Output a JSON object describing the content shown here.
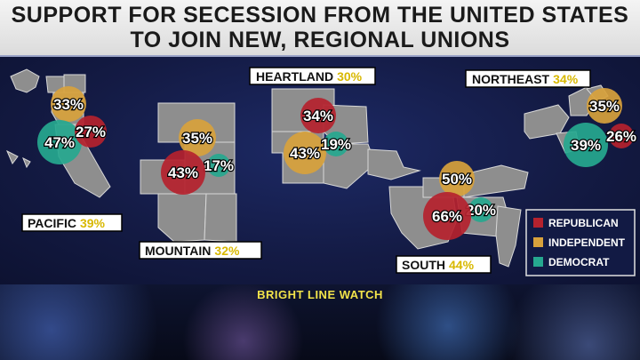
{
  "title": {
    "line1": "SUPPORT FOR SECESSION FROM THE UNITED STATES",
    "line2": "TO JOIN NEW, REGIONAL UNIONS"
  },
  "source": "BRIGHT LINE WATCH",
  "chart_data": {
    "type": "bubble-map",
    "title": "SUPPORT FOR SECESSION FROM THE UNITED STATES TO JOIN NEW, REGIONAL UNIONS",
    "legend": {
      "placement": "bottom-right",
      "entries": [
        {
          "name": "REPUBLICAN",
          "color": "#b5222e"
        },
        {
          "name": "INDEPENDENT",
          "color": "#d8a23c"
        },
        {
          "name": "DEMOCRAT",
          "color": "#26a88f"
        }
      ]
    },
    "regions": [
      {
        "name": "PACIFIC",
        "total": "39%",
        "republican": "27%",
        "independent": "33%",
        "democrat": "47%"
      },
      {
        "name": "MOUNTAIN",
        "total": "32%",
        "republican": "43%",
        "independent": "35%",
        "democrat": "17%"
      },
      {
        "name": "HEARTLAND",
        "total": "30%",
        "republican": "34%",
        "independent": "43%",
        "democrat": "19%"
      },
      {
        "name": "NORTHEAST",
        "total": "34%",
        "republican": "26%",
        "independent": "35%",
        "democrat": "39%"
      },
      {
        "name": "SOUTH",
        "total": "44%",
        "republican": "66%",
        "independent": "50%",
        "democrat": "20%"
      }
    ]
  }
}
